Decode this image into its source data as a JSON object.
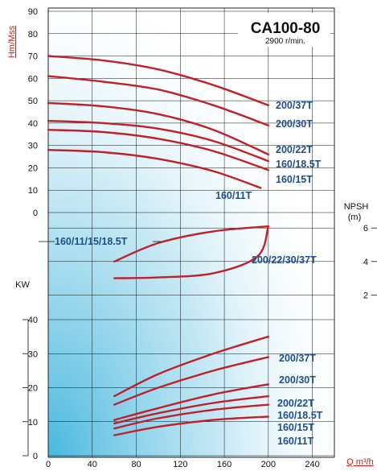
{
  "colors": {
    "curve": "#c0202a",
    "label": "#1d4f8c",
    "red_text": "#c8201c",
    "bg_top": "#ffffff",
    "bg_bottom": "#5ec3e3"
  },
  "chart_data": [
    {
      "type": "line",
      "panel": "head",
      "title": "CA100-80",
      "subtitle": "2900 r/min.",
      "ylabel": "Hm/Mss",
      "ylim": [
        0,
        90
      ],
      "yticks": [
        "90",
        "80",
        "70",
        "60",
        "50",
        "40",
        "30",
        "20",
        "10",
        "0"
      ],
      "series": [
        {
          "name": "200/37T",
          "x": [
            0,
            50,
            100,
            150,
            200
          ],
          "values": [
            70,
            68,
            64,
            57,
            48
          ]
        },
        {
          "name": "200/30T",
          "x": [
            0,
            50,
            100,
            150,
            200
          ],
          "values": [
            61,
            58.5,
            55,
            48,
            39
          ]
        },
        {
          "name": "200/22T",
          "x": [
            0,
            50,
            100,
            150,
            200
          ],
          "values": [
            49,
            47.5,
            44,
            37,
            26
          ]
        },
        {
          "name": "160/18.5T",
          "x": [
            0,
            50,
            100,
            150,
            200
          ],
          "values": [
            41,
            40,
            37.5,
            32,
            23
          ]
        },
        {
          "name": "160/15T",
          "x": [
            0,
            50,
            100,
            150,
            200
          ],
          "values": [
            37,
            36,
            33,
            27.5,
            19
          ]
        },
        {
          "name": "160/11T",
          "x": [
            0,
            50,
            100,
            150,
            193
          ],
          "values": [
            28,
            27,
            24,
            18.5,
            11
          ]
        }
      ]
    },
    {
      "type": "line",
      "panel": "npsh",
      "ylabel": "NPSH",
      "yunit": "(m)",
      "ylim": [
        0,
        8
      ],
      "yticks": [
        "6",
        "4",
        "2"
      ],
      "series": [
        {
          "name": "160/11/15/18.5T",
          "x": [
            60,
            100,
            150,
            200
          ],
          "values": [
            4,
            5.1,
            5.8,
            6.1
          ]
        },
        {
          "name": "200/22/30/37T",
          "x": [
            60,
            100,
            150,
            190,
            200
          ],
          "values": [
            3,
            3.05,
            3.3,
            4.3,
            6.1
          ]
        }
      ]
    },
    {
      "type": "line",
      "panel": "power",
      "ylabel": "KW",
      "ylim": [
        0,
        40
      ],
      "yticks": [
        "40",
        "30",
        "20",
        "10",
        "0"
      ],
      "xlabel": "Q m³/h",
      "xlim": [
        0,
        260
      ],
      "xticks": [
        "0",
        "40",
        "80",
        "120",
        "160",
        "200",
        "240"
      ],
      "series": [
        {
          "name": "200/37T",
          "x": [
            60,
            100,
            150,
            200
          ],
          "values": [
            17.5,
            24,
            30,
            35
          ]
        },
        {
          "name": "200/30T",
          "x": [
            60,
            100,
            150,
            200
          ],
          "values": [
            15,
            20,
            25,
            29
          ]
        },
        {
          "name": "200/22T",
          "x": [
            60,
            100,
            150,
            200
          ],
          "values": [
            10.5,
            14,
            18,
            21
          ]
        },
        {
          "name": "160/18.5T",
          "x": [
            60,
            100,
            150,
            200
          ],
          "values": [
            9.5,
            12.5,
            15.5,
            17.5
          ]
        },
        {
          "name": "160/15T",
          "x": [
            60,
            100,
            150,
            200
          ],
          "values": [
            8,
            11,
            13.5,
            15
          ]
        },
        {
          "name": "160/11T",
          "x": [
            60,
            100,
            150,
            200
          ],
          "values": [
            6,
            8.5,
            10.5,
            11.5
          ]
        }
      ]
    }
  ]
}
